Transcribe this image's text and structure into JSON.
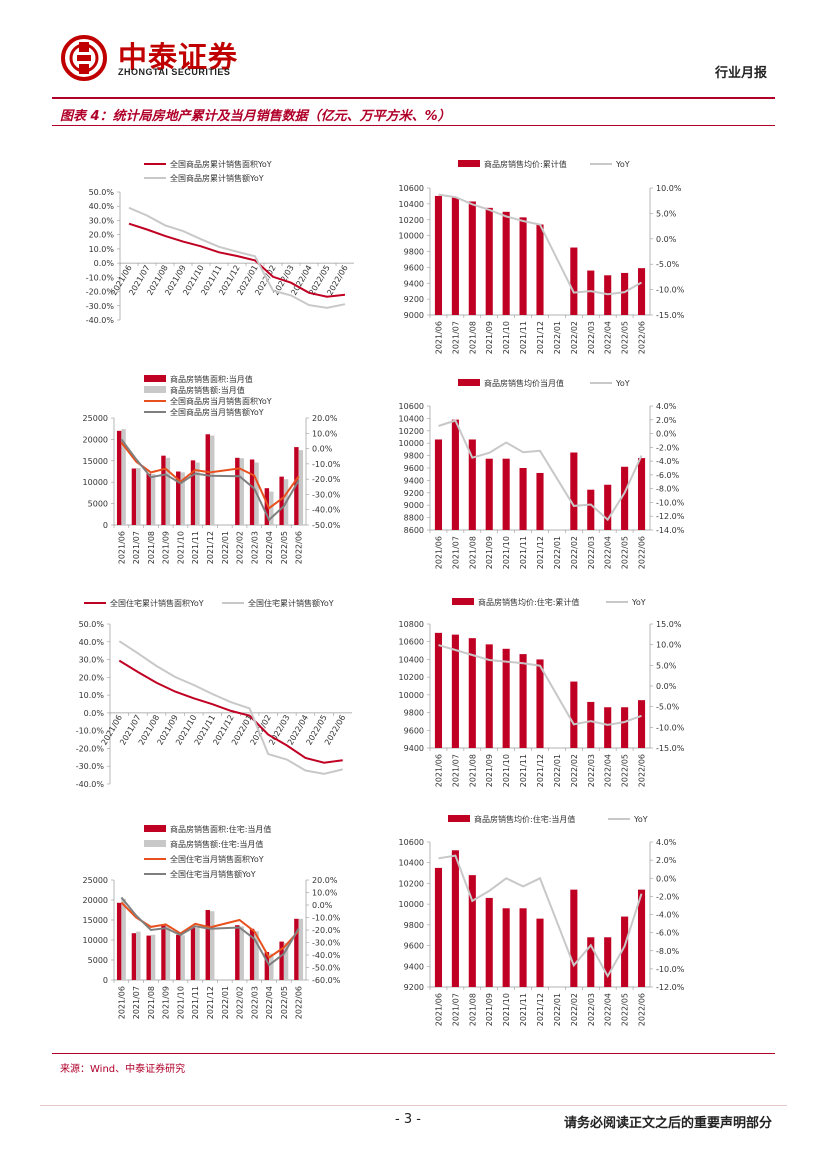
{
  "header": {
    "brand_cn": "中泰证券",
    "brand_en": "ZHONGTAI SECURITIES",
    "report_type": "行业月报"
  },
  "figure_title": "图表 4：统计局房地产累计及当月销售数据（亿元、万平方米、%）",
  "footer": {
    "source": "来源：Wind、中泰证券研究",
    "page_number": "- 3 -",
    "disclaimer": "请务必阅读正文之后的重要声明部分"
  },
  "colors": {
    "red": "#c00023",
    "gray": "#c8c8c8",
    "orange": "#e8501e",
    "darkgray": "#7f7f7f"
  },
  "chart_data": [
    {
      "id": "c1",
      "type": "line",
      "categories": [
        "2021/06",
        "2021/07",
        "2021/08",
        "2021/09",
        "2021/10",
        "2021/11",
        "2021/12",
        "2022/01",
        "2022/02",
        "2022/03",
        "2022/04",
        "2022/05",
        "2022/06"
      ],
      "series": [
        {
          "name": "全国商品房累计销售面积YoY",
          "color": "#c00023",
          "axis": "left",
          "values": [
            27.7,
            23.6,
            19.1,
            15.1,
            11.8,
            7.6,
            5.0,
            1.9,
            -9.6,
            -13.8,
            -20.9,
            -23.6,
            -22.2
          ]
        },
        {
          "name": "全国商品房累计销售额YoY",
          "color": "#c8c8c8",
          "axis": "left",
          "values": [
            38.9,
            33.5,
            26.6,
            22.5,
            16.8,
            11.5,
            8.0,
            4.8,
            -19.3,
            -22.7,
            -29.5,
            -31.5,
            -28.9
          ]
        }
      ],
      "ylim": [
        -40,
        50
      ],
      "yticks": [
        "50.0%",
        "40.0%",
        "30.0%",
        "20.0%",
        "10.0%",
        "0.0%",
        "-10.0%",
        "-20.0%",
        "-30.0%",
        "-40.0%"
      ]
    },
    {
      "id": "c2",
      "type": "bar+line",
      "categories": [
        "2021/06",
        "2021/07",
        "2021/08",
        "2021/09",
        "2021/10",
        "2021/11",
        "2021/12",
        "2022/01",
        "2022/02",
        "2022/03",
        "2022/04",
        "2022/05",
        "2022/06"
      ],
      "series": [
        {
          "name": "商品房销售均价:累计值",
          "type": "bar",
          "color": "#c00023",
          "axis": "left",
          "values": [
            10500,
            10480,
            10430,
            10350,
            10300,
            10230,
            10140,
            null,
            9850,
            9560,
            9500,
            9530,
            9590
          ]
        },
        {
          "name": "YoY",
          "type": "line",
          "color": "#c8c8c8",
          "axis": "right",
          "values": [
            8.7,
            8.2,
            6.8,
            5.7,
            4.4,
            3.5,
            2.8,
            null,
            -10.6,
            -10.3,
            -10.9,
            -10.5,
            -8.6
          ]
        }
      ],
      "ylim_left": [
        9000,
        10600
      ],
      "yticks_left": [
        "10600",
        "10400",
        "10200",
        "10000",
        "9800",
        "9600",
        "9400",
        "9200",
        "9000"
      ],
      "ylim_right": [
        -15,
        10
      ],
      "yticks_right": [
        "10.0%",
        "5.0%",
        "0.0%",
        "-5.0%",
        "-10.0%",
        "-15.0%"
      ]
    },
    {
      "id": "c3",
      "type": "bar+line",
      "categories": [
        "2021/06",
        "2021/07",
        "2021/08",
        "2021/09",
        "2021/10",
        "2021/11",
        "2021/12",
        "2022/01",
        "2022/02",
        "2022/03",
        "2022/04",
        "2022/05",
        "2022/06"
      ],
      "series": [
        {
          "name": "商品房销售面积:当月值",
          "type": "bar",
          "color": "#c00023",
          "axis": "left",
          "values": [
            22000,
            13200,
            12000,
            16200,
            12500,
            15100,
            21200,
            null,
            15700,
            15300,
            8600,
            11300,
            18200
          ]
        },
        {
          "name": "商品房销售额:当月值",
          "type": "bar",
          "color": "#c8c8c8",
          "axis": "left",
          "values": [
            22400,
            13300,
            11900,
            15700,
            12300,
            14600,
            20900,
            null,
            15600,
            14600,
            7800,
            10700,
            17500
          ]
        },
        {
          "name": "全国商品房当月销售面积YoY",
          "type": "line",
          "color": "#e8501e",
          "axis": "right",
          "values": [
            4.0,
            -8.5,
            -15.6,
            -13.2,
            -21.6,
            -14.0,
            -15.6,
            null,
            -13.0,
            -17.7,
            -39.0,
            -31.8,
            -18.3
          ]
        },
        {
          "name": "全国商品房当月销售额YoY",
          "type": "line",
          "color": "#7f7f7f",
          "axis": "right",
          "values": [
            6.0,
            -7.0,
            -18.7,
            -16.9,
            -22.7,
            -16.3,
            -17.8,
            null,
            -18.1,
            -26.2,
            -46.6,
            -37.7,
            -20.8
          ]
        }
      ],
      "ylim_left": [
        0,
        25000
      ],
      "yticks_left": [
        "25000",
        "20000",
        "15000",
        "10000",
        "5000",
        "0"
      ],
      "ylim_right": [
        -50,
        20
      ],
      "yticks_right": [
        "20.0%",
        "10.0%",
        "0.0%",
        "-10.0%",
        "-20.0%",
        "-30.0%",
        "-40.0%",
        "-50.0%"
      ]
    },
    {
      "id": "c4",
      "type": "bar+line",
      "categories": [
        "2021/06",
        "2021/07",
        "2021/08",
        "2021/09",
        "2021/10",
        "2021/11",
        "2021/12",
        "2022/01",
        "2022/02",
        "2022/03",
        "2022/04",
        "2022/05",
        "2022/06"
      ],
      "series": [
        {
          "name": "商品房销售均价当月值",
          "type": "bar",
          "color": "#c00023",
          "axis": "left",
          "values": [
            10060,
            10380,
            10060,
            9750,
            9750,
            9600,
            9520,
            null,
            9850,
            9250,
            9330,
            9620,
            9760
          ]
        },
        {
          "name": "YoY",
          "type": "line",
          "color": "#c8c8c8",
          "axis": "right",
          "values": [
            1.1,
            1.9,
            -3.5,
            -2.8,
            -1.3,
            -2.7,
            -2.5,
            null,
            -10.5,
            -10.3,
            -12.5,
            -8.6,
            -3.2
          ]
        }
      ],
      "ylim_left": [
        8600,
        10600
      ],
      "yticks_left": [
        "10600",
        "10400",
        "10200",
        "10000",
        "9800",
        "9600",
        "9400",
        "9200",
        "9000",
        "8800",
        "8600"
      ],
      "ylim_right": [
        -14,
        4
      ],
      "yticks_right": [
        "4.0%",
        "2.0%",
        "0.0%",
        "-2.0%",
        "-4.0%",
        "-6.0%",
        "-8.0%",
        "-10.0%",
        "-12.0%",
        "-14.0%"
      ]
    },
    {
      "id": "c5",
      "type": "line",
      "categories": [
        "2021/06",
        "2021/07",
        "2021/08",
        "2021/09",
        "2021/10",
        "2021/11",
        "2021/12",
        "2022/01",
        "2022/02",
        "2022/03",
        "2022/04",
        "2022/05",
        "2022/06"
      ],
      "series": [
        {
          "name": "全国住宅累计销售面积YoY",
          "color": "#c00023",
          "axis": "left",
          "values": [
            29.4,
            23.0,
            16.9,
            12.0,
            8.2,
            4.9,
            1.1,
            -1.6,
            -12.2,
            -18.3,
            -25.4,
            -28.0,
            -26.6
          ]
        },
        {
          "name": "全国住宅累计销售额YoY",
          "color": "#c8c8c8",
          "axis": "left",
          "values": [
            40.3,
            33.5,
            26.4,
            20.2,
            15.7,
            10.6,
            6.0,
            2.5,
            -23.2,
            -26.2,
            -32.4,
            -34.3,
            -31.8
          ]
        }
      ],
      "ylim": [
        -40,
        50
      ],
      "yticks": [
        "50.0%",
        "40.0%",
        "30.0%",
        "20.0%",
        "10.0%",
        "0.0%",
        "-10.0%",
        "-20.0%",
        "-30.0%",
        "-40.0%"
      ]
    },
    {
      "id": "c6",
      "type": "bar+line",
      "categories": [
        "2021/06",
        "2021/07",
        "2021/08",
        "2021/09",
        "2021/10",
        "2021/11",
        "2021/12",
        "2022/01",
        "2022/02",
        "2022/03",
        "2022/04",
        "2022/05",
        "2022/06"
      ],
      "series": [
        {
          "name": "商品房销售均价:住宅:累计值",
          "type": "bar",
          "color": "#c00023",
          "axis": "left",
          "values": [
            10700,
            10680,
            10640,
            10570,
            10520,
            10460,
            10400,
            null,
            10150,
            9920,
            9860,
            9860,
            9940
          ]
        },
        {
          "name": "YoY",
          "type": "line",
          "color": "#c8c8c8",
          "axis": "right",
          "values": [
            9.9,
            8.7,
            7.5,
            6.3,
            5.9,
            5.5,
            4.9,
            null,
            -9.3,
            -8.5,
            -9.4,
            -8.7,
            -7.2
          ]
        }
      ],
      "ylim_left": [
        9400,
        10800
      ],
      "yticks_left": [
        "10800",
        "10600",
        "10400",
        "10200",
        "10000",
        "9800",
        "9600",
        "9400"
      ],
      "ylim_right": [
        -15,
        15
      ],
      "yticks_right": [
        "15.0%",
        "10.0%",
        "5.0%",
        "0.0%",
        "-5.0%",
        "-10.0%",
        "-15.0%"
      ]
    },
    {
      "id": "c7",
      "type": "bar+line",
      "categories": [
        "2021/06",
        "2021/07",
        "2021/08",
        "2021/09",
        "2021/10",
        "2021/11",
        "2021/12",
        "2022/01",
        "2022/02",
        "2022/03",
        "2022/04",
        "2022/05",
        "2022/06"
      ],
      "series": [
        {
          "name": "商品房销售面积:住宅:当月值",
          "type": "bar",
          "color": "#c00023",
          "axis": "left",
          "values": [
            19300,
            11700,
            11100,
            13600,
            11300,
            13100,
            17500,
            null,
            13700,
            12800,
            7000,
            9600,
            15300
          ]
        },
        {
          "name": "商品房销售额:住宅:当月值",
          "type": "bar",
          "color": "#c8c8c8",
          "axis": "left",
          "values": [
            20300,
            12100,
            11300,
            13600,
            11200,
            13000,
            17200,
            null,
            13400,
            12200,
            6600,
            9300,
            15300
          ]
        },
        {
          "name": "全国住宅当月销售面积YoY",
          "type": "line",
          "color": "#e8501e",
          "axis": "right",
          "values": [
            2.0,
            -10.0,
            -17.5,
            -15.5,
            -22.8,
            -15.0,
            -17.8,
            null,
            -12.0,
            -21.0,
            -42.0,
            -34.0,
            -20.8
          ]
        },
        {
          "name": "全国住宅当月销售额YoY",
          "type": "line",
          "color": "#7f7f7f",
          "axis": "right",
          "values": [
            6.0,
            -8.5,
            -20.0,
            -18.5,
            -24.0,
            -17.0,
            -19.0,
            null,
            -18.0,
            -27.0,
            -48.0,
            -39.0,
            -19.0
          ]
        }
      ],
      "ylim_left": [
        0,
        25000
      ],
      "yticks_left": [
        "25000",
        "20000",
        "15000",
        "10000",
        "5000",
        "0"
      ],
      "ylim_right": [
        -60,
        20
      ],
      "yticks_right": [
        "20.0%",
        "10.0%",
        "0.0%",
        "-10.0%",
        "-20.0%",
        "-30.0%",
        "-40.0%",
        "-50.0%",
        "-60.0%"
      ]
    },
    {
      "id": "c8",
      "type": "bar+line",
      "categories": [
        "2021/06",
        "2021/07",
        "2021/08",
        "2021/09",
        "2021/10",
        "2021/11",
        "2021/12",
        "2022/01",
        "2022/02",
        "2022/03",
        "2022/04",
        "2022/05",
        "2022/06"
      ],
      "series": [
        {
          "name": "商品房销售均价:住宅:当月值",
          "type": "bar",
          "color": "#c00023",
          "axis": "left",
          "values": [
            10350,
            10520,
            10280,
            10060,
            9960,
            9960,
            9860,
            null,
            10140,
            9680,
            9680,
            9880,
            10140
          ]
        },
        {
          "name": "YoY",
          "type": "line",
          "color": "#c8c8c8",
          "axis": "right",
          "values": [
            2.2,
            2.5,
            -2.5,
            -1.4,
            0.0,
            -0.9,
            0.0,
            null,
            -9.6,
            -7.4,
            -10.8,
            -7.5,
            -1.7
          ]
        }
      ],
      "ylim_left": [
        9200,
        10600
      ],
      "yticks_left": [
        "10600",
        "10400",
        "10200",
        "10000",
        "9800",
        "9600",
        "9400",
        "9200"
      ],
      "ylim_right": [
        -12,
        4
      ],
      "yticks_right": [
        "4.0%",
        "2.0%",
        "0.0%",
        "-2.0%",
        "-4.0%",
        "-6.0%",
        "-8.0%",
        "-10.0%",
        "-12.0%"
      ]
    }
  ]
}
